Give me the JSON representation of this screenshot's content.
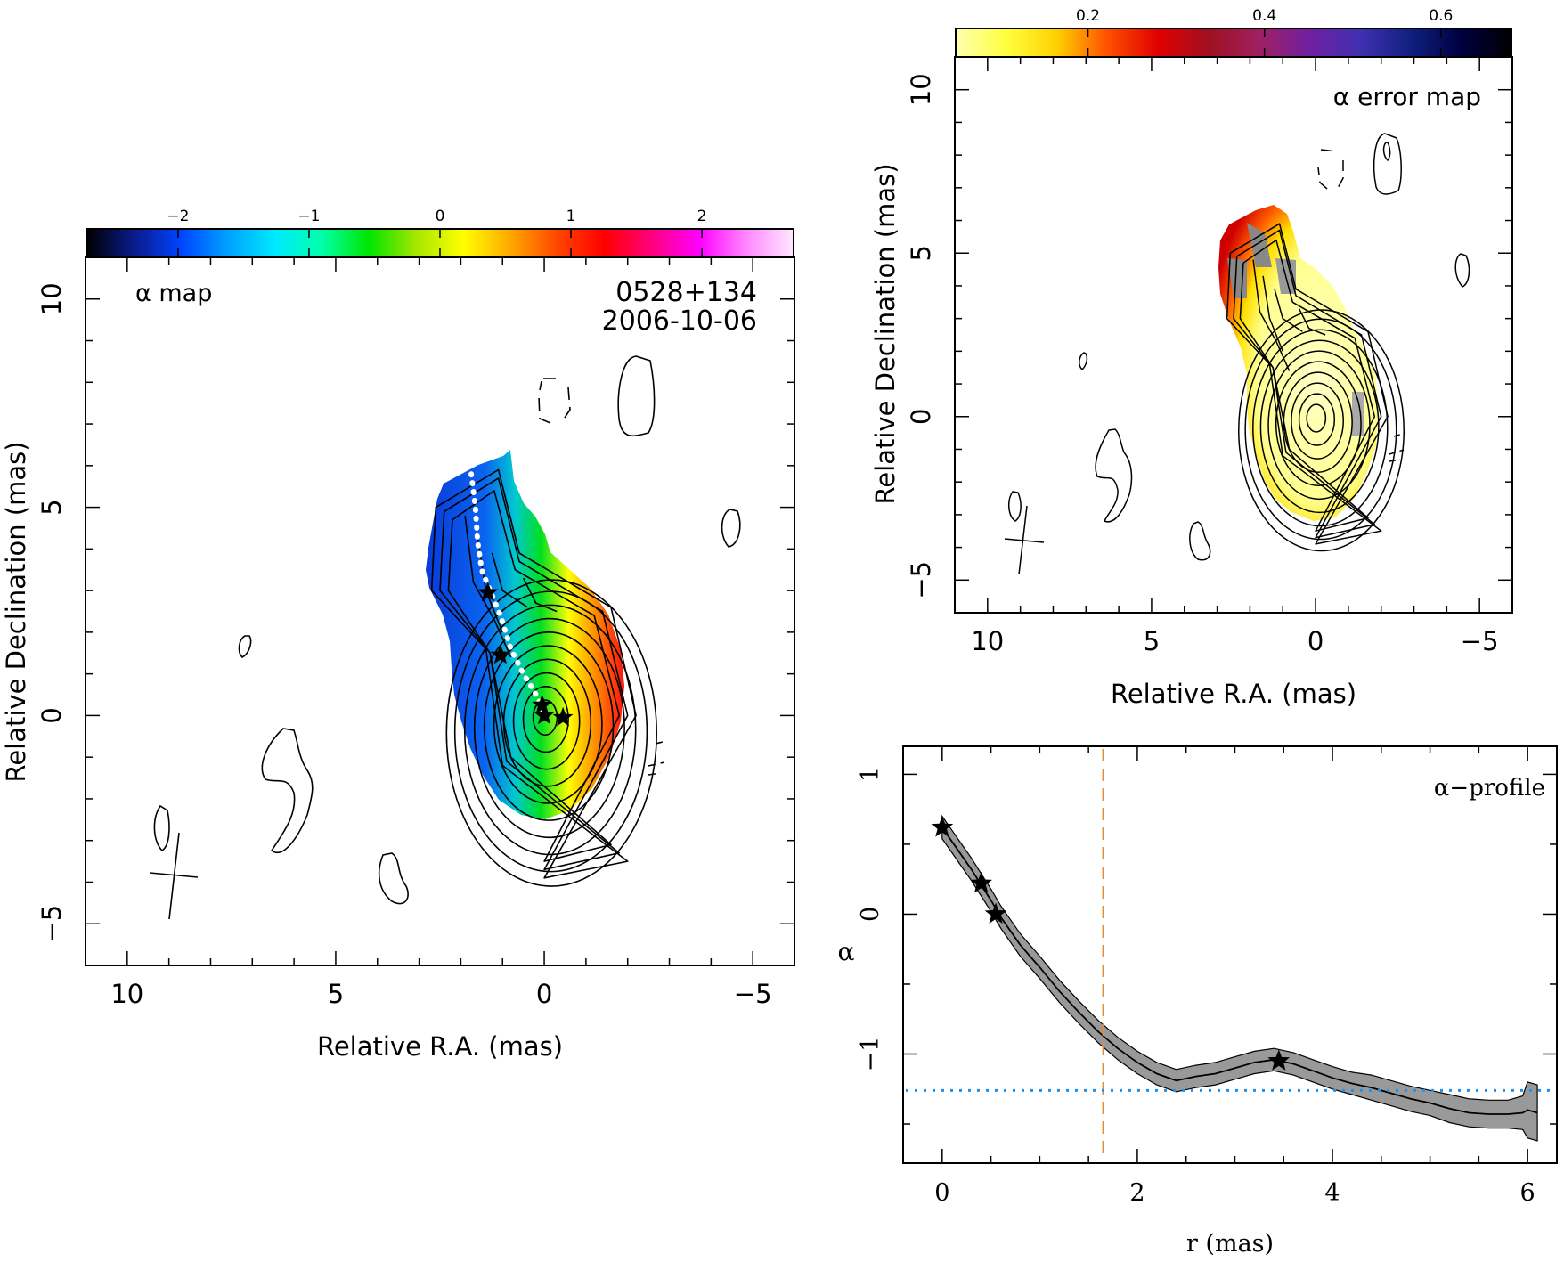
{
  "chart_data": [
    {
      "type": "heatmap",
      "panel": "spectral-index-map",
      "title": "α map",
      "source": "0528+134",
      "date": "2006-10-06",
      "xlabel": "Relative R.A. (mas)",
      "ylabel": "Relative Declination (mas)",
      "xlim": [
        11,
        -6
      ],
      "ylim": [
        -6,
        11
      ],
      "xticks": [
        10,
        5,
        0,
        -5
      ],
      "yticks": [
        -5,
        0,
        5,
        10
      ],
      "colorbar": {
        "range": [
          -2.7,
          2.7
        ],
        "ticks": [
          -2,
          -1,
          0,
          1,
          2
        ],
        "tick_labels": [
          "−2",
          "−1",
          "0",
          "1",
          "2"
        ],
        "colormap": [
          "#000000",
          "#0a1a8a",
          "#0044ff",
          "#00a0ff",
          "#00eaff",
          "#00ffaa",
          "#00e600",
          "#a8e600",
          "#ffff00",
          "#ffa800",
          "#ff4400",
          "#ff0000",
          "#ff0080",
          "#ff00ff",
          "#ff88ff",
          "#ffe8ff"
        ]
      },
      "ridge_line": [
        [
          1.75,
          5.8
        ],
        [
          1.65,
          5.0
        ],
        [
          1.6,
          4.2
        ],
        [
          1.5,
          3.5
        ],
        [
          1.3,
          3.0
        ],
        [
          1.05,
          2.4
        ],
        [
          0.8,
          1.6
        ],
        [
          0.5,
          1.0
        ],
        [
          0.25,
          0.6
        ],
        [
          0.05,
          0.2
        ],
        [
          0.0,
          0.0
        ]
      ],
      "stars": [
        [
          1.35,
          2.95
        ],
        [
          1.05,
          1.45
        ],
        [
          0.05,
          0.25
        ],
        [
          0.0,
          0.0
        ],
        [
          -0.45,
          -0.05
        ]
      ],
      "beam": {
        "center": [
          8.9,
          -3.8
        ],
        "major": 2.6,
        "minor": 1.6,
        "pa": -10
      }
    },
    {
      "type": "heatmap",
      "panel": "error-map",
      "title": "α error map",
      "xlabel": "Relative R.A. (mas)",
      "ylabel": "Relative Declination (mas)",
      "xlim": [
        11,
        -6
      ],
      "ylim": [
        -6,
        11
      ],
      "xticks": [
        10,
        5,
        0,
        -5
      ],
      "yticks": [
        -5,
        0,
        5,
        10
      ],
      "colorbar": {
        "range": [
          0.05,
          0.68
        ],
        "ticks": [
          0.2,
          0.4,
          0.6
        ],
        "tick_labels": [
          "0.2",
          "0.4",
          "0.6"
        ],
        "colormap": [
          "#ffffb0",
          "#ffff40",
          "#ffd000",
          "#ff5000",
          "#e00000",
          "#a01020",
          "#a02060",
          "#7020a0",
          "#4030b0",
          "#102080",
          "#000040",
          "#000000"
        ]
      },
      "beam": {
        "center": [
          8.9,
          -3.8
        ],
        "major": 2.6,
        "minor": 1.6,
        "pa": -10
      }
    },
    {
      "type": "line",
      "panel": "alpha-profile",
      "title": "α−profile",
      "xlabel": "r (mas)",
      "ylabel": "α",
      "xlim": [
        -0.4,
        6.3
      ],
      "ylim": [
        -1.78,
        1.2
      ],
      "xticks": [
        0,
        2,
        4,
        6
      ],
      "yticks": [
        -1,
        0,
        1
      ],
      "x": [
        0,
        0.1,
        0.2,
        0.3,
        0.4,
        0.5,
        0.6,
        0.7,
        0.8,
        0.9,
        1.0,
        1.2,
        1.4,
        1.6,
        1.8,
        2.0,
        2.2,
        2.4,
        2.6,
        2.8,
        3.0,
        3.2,
        3.4,
        3.6,
        3.8,
        4.0,
        4.2,
        4.4,
        4.6,
        4.8,
        5.0,
        5.2,
        5.4,
        5.6,
        5.8,
        5.95,
        6.0,
        6.1
      ],
      "y": [
        0.62,
        0.52,
        0.42,
        0.32,
        0.21,
        0.1,
        -0.02,
        -0.12,
        -0.22,
        -0.3,
        -0.38,
        -0.55,
        -0.7,
        -0.84,
        -0.96,
        -1.06,
        -1.14,
        -1.19,
        -1.16,
        -1.14,
        -1.1,
        -1.06,
        -1.04,
        -1.07,
        -1.12,
        -1.17,
        -1.21,
        -1.24,
        -1.28,
        -1.32,
        -1.35,
        -1.39,
        -1.42,
        -1.43,
        -1.43,
        -1.42,
        -1.4,
        -1.42
      ],
      "error": [
        0.08,
        0.08,
        0.08,
        0.08,
        0.08,
        0.08,
        0.08,
        0.08,
        0.08,
        0.08,
        0.08,
        0.08,
        0.08,
        0.08,
        0.08,
        0.08,
        0.08,
        0.08,
        0.08,
        0.08,
        0.08,
        0.08,
        0.08,
        0.08,
        0.08,
        0.08,
        0.08,
        0.09,
        0.09,
        0.09,
        0.09,
        0.1,
        0.1,
        0.1,
        0.1,
        0.12,
        0.2,
        0.2
      ],
      "stars": [
        [
          0.0,
          0.62
        ],
        [
          0.4,
          0.22
        ],
        [
          0.55,
          0.0
        ],
        [
          3.45,
          -1.05
        ]
      ],
      "vline": {
        "x": 1.65,
        "color": "#e09030",
        "style": "dashed"
      },
      "hline": {
        "y": -1.26,
        "color": "#2090f0",
        "style": "dotted"
      }
    }
  ]
}
